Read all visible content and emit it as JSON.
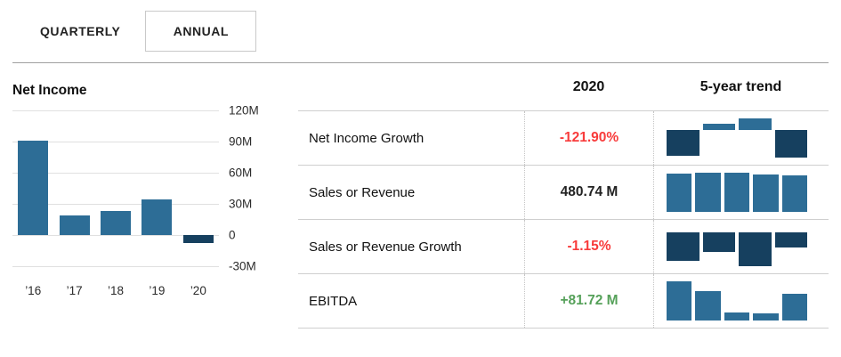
{
  "tabs": {
    "quarterly": "QUARTERLY",
    "annual": "ANNUAL"
  },
  "colors": {
    "positive_bar": "#2d6d96",
    "negative_bar": "#16405f",
    "negative_text": "#f83b3b",
    "positive_text": "#56a15a",
    "neutral_text": "#222222"
  },
  "chart_data": [
    {
      "name": "net-income-annual-bar-chart",
      "type": "bar",
      "title": "Net Income",
      "categories": [
        "’16",
        "’17",
        "’18",
        "’19",
        "’20"
      ],
      "values": [
        91,
        19,
        23,
        34,
        -8
      ],
      "unit": "M",
      "ylabel": "",
      "xlabel": "",
      "ylim": [
        -30,
        120
      ],
      "ytick_step": 30,
      "ytick_labels": [
        "120M",
        "90M",
        "60M",
        "30M",
        "0",
        "-30M"
      ],
      "grid": true,
      "legend": false,
      "positive_color": "#2d6d96",
      "negative_color": "#16405f"
    },
    {
      "name": "net-income-growth-5yr-sparkline",
      "type": "bar",
      "categories": [
        "’17",
        "’18",
        "’19",
        "’20"
      ],
      "values": [
        -114,
        30,
        52,
        -121.9
      ],
      "unit": "%"
    },
    {
      "name": "sales-or-revenue-5yr-sparkline",
      "type": "bar",
      "categories": [
        "’16",
        "’17",
        "’18",
        "’19",
        "’20"
      ],
      "values": [
        500,
        512,
        512,
        490,
        480.74
      ],
      "unit": "M"
    },
    {
      "name": "sales-or-revenue-growth-5yr-sparkline",
      "type": "bar",
      "categories": [
        "’17",
        "’18",
        "’19",
        "’20"
      ],
      "values": [
        -2.2,
        -1.5,
        -2.6,
        -1.15
      ],
      "unit": "%"
    },
    {
      "name": "ebitda-5yr-sparkline",
      "type": "bar",
      "categories": [
        "’16",
        "’17",
        "’18",
        "’19",
        "’20"
      ],
      "values": [
        118,
        88,
        24,
        21,
        81.72
      ],
      "unit": "M"
    }
  ],
  "table": {
    "columns": [
      "",
      "2020",
      "5-year trend"
    ],
    "rows": [
      {
        "label": "Net Income Growth",
        "value": "-121.90%",
        "value_color": "#f83b3b",
        "spark": 1
      },
      {
        "label": "Sales or Revenue",
        "value": "480.74 M",
        "value_color": "#222222",
        "spark": 2
      },
      {
        "label": "Sales or Revenue Growth",
        "value": "-1.15%",
        "value_color": "#f83b3b",
        "spark": 3
      },
      {
        "label": "EBITDA",
        "value": "+81.72 M",
        "value_color": "#56a15a",
        "spark": 4
      }
    ]
  }
}
